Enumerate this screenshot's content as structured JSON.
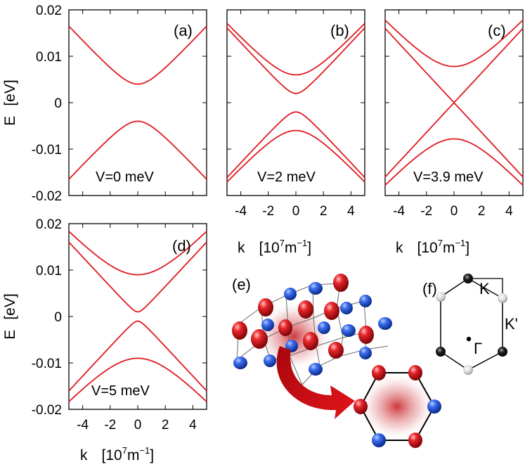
{
  "colors": {
    "curve": "#e0191f",
    "axis": "#000000",
    "blue_atom": "#1f4fd0",
    "red_atom": "#d9141e"
  },
  "chart_data": [
    {
      "type": "line",
      "panel": "(a)",
      "annotation": "V=0 meV",
      "xlim": [
        -5,
        5
      ],
      "ylim": [
        -0.02,
        0.02
      ],
      "xticks": [],
      "yticks": [
        "0.02",
        "0.01",
        "0",
        "-0.01",
        "-0.02"
      ],
      "ylabel": "E [eV]",
      "xlabel": "",
      "series": [
        {
          "name": "conduction",
          "gap": 0.004,
          "velocity": 0.0032
        },
        {
          "name": "valence",
          "gap": -0.004,
          "velocity": 0.0032
        }
      ]
    },
    {
      "type": "line",
      "panel": "(b)",
      "annotation": "V=2 meV",
      "xlim": [
        -5,
        5
      ],
      "ylim": [
        -0.02,
        0.02
      ],
      "xticks": [
        "-4",
        "-2",
        "0",
        "2",
        "4"
      ],
      "yticks": [],
      "xlabel": "k [10^7 m^-1]",
      "series": [
        {
          "name": "c2",
          "gap": 0.006,
          "velocity": 0.0032
        },
        {
          "name": "c1",
          "gap": 0.002,
          "velocity": 0.0032
        },
        {
          "name": "v1",
          "gap": -0.002,
          "velocity": 0.0032
        },
        {
          "name": "v2",
          "gap": -0.006,
          "velocity": 0.0032
        }
      ]
    },
    {
      "type": "line",
      "panel": "(c)",
      "annotation": "V=3.9 meV",
      "xlim": [
        -5,
        5
      ],
      "ylim": [
        -0.02,
        0.02
      ],
      "xticks": [
        "-4",
        "-2",
        "0",
        "2",
        "4"
      ],
      "yticks": [],
      "xlabel": "k [10^7 m^-1]",
      "series": [
        {
          "name": "c2",
          "gap": 0.0078,
          "velocity": 0.0032
        },
        {
          "name": "c1",
          "gap": 0.0001,
          "velocity": 0.0032
        },
        {
          "name": "v1",
          "gap": -0.0001,
          "velocity": 0.0032
        },
        {
          "name": "v2",
          "gap": -0.0078,
          "velocity": 0.0032
        }
      ]
    },
    {
      "type": "line",
      "panel": "(d)",
      "annotation": "V=5 meV",
      "xlim": [
        -5,
        5
      ],
      "ylim": [
        -0.02,
        0.02
      ],
      "xticks": [
        "-4",
        "-2",
        "0",
        "2",
        "4"
      ],
      "yticks": [
        "0.02",
        "0.01",
        "0",
        "-0.01",
        "-0.02"
      ],
      "ylabel": "E [eV]",
      "xlabel": "k [10^7 m^-1]",
      "series": [
        {
          "name": "c2",
          "gap": 0.009,
          "velocity": 0.0032
        },
        {
          "name": "c1",
          "gap": 0.001,
          "velocity": 0.0032
        },
        {
          "name": "v1",
          "gap": -0.001,
          "velocity": 0.0032
        },
        {
          "name": "v2",
          "gap": -0.009,
          "velocity": 0.0032
        }
      ]
    }
  ],
  "illustration_e": {
    "label": "(e)"
  },
  "brillouin_f": {
    "label": "(f)",
    "k_label": "K",
    "kprime_label": "K'",
    "gamma_label": "Γ"
  },
  "axis_text": {
    "e_label": "E",
    "ev_label": "[eV]",
    "k_label": "k",
    "unit_open": "[10",
    "unit_exp": "7",
    "unit_m": "m",
    "unit_minus": "−1",
    "unit_close": "]"
  }
}
